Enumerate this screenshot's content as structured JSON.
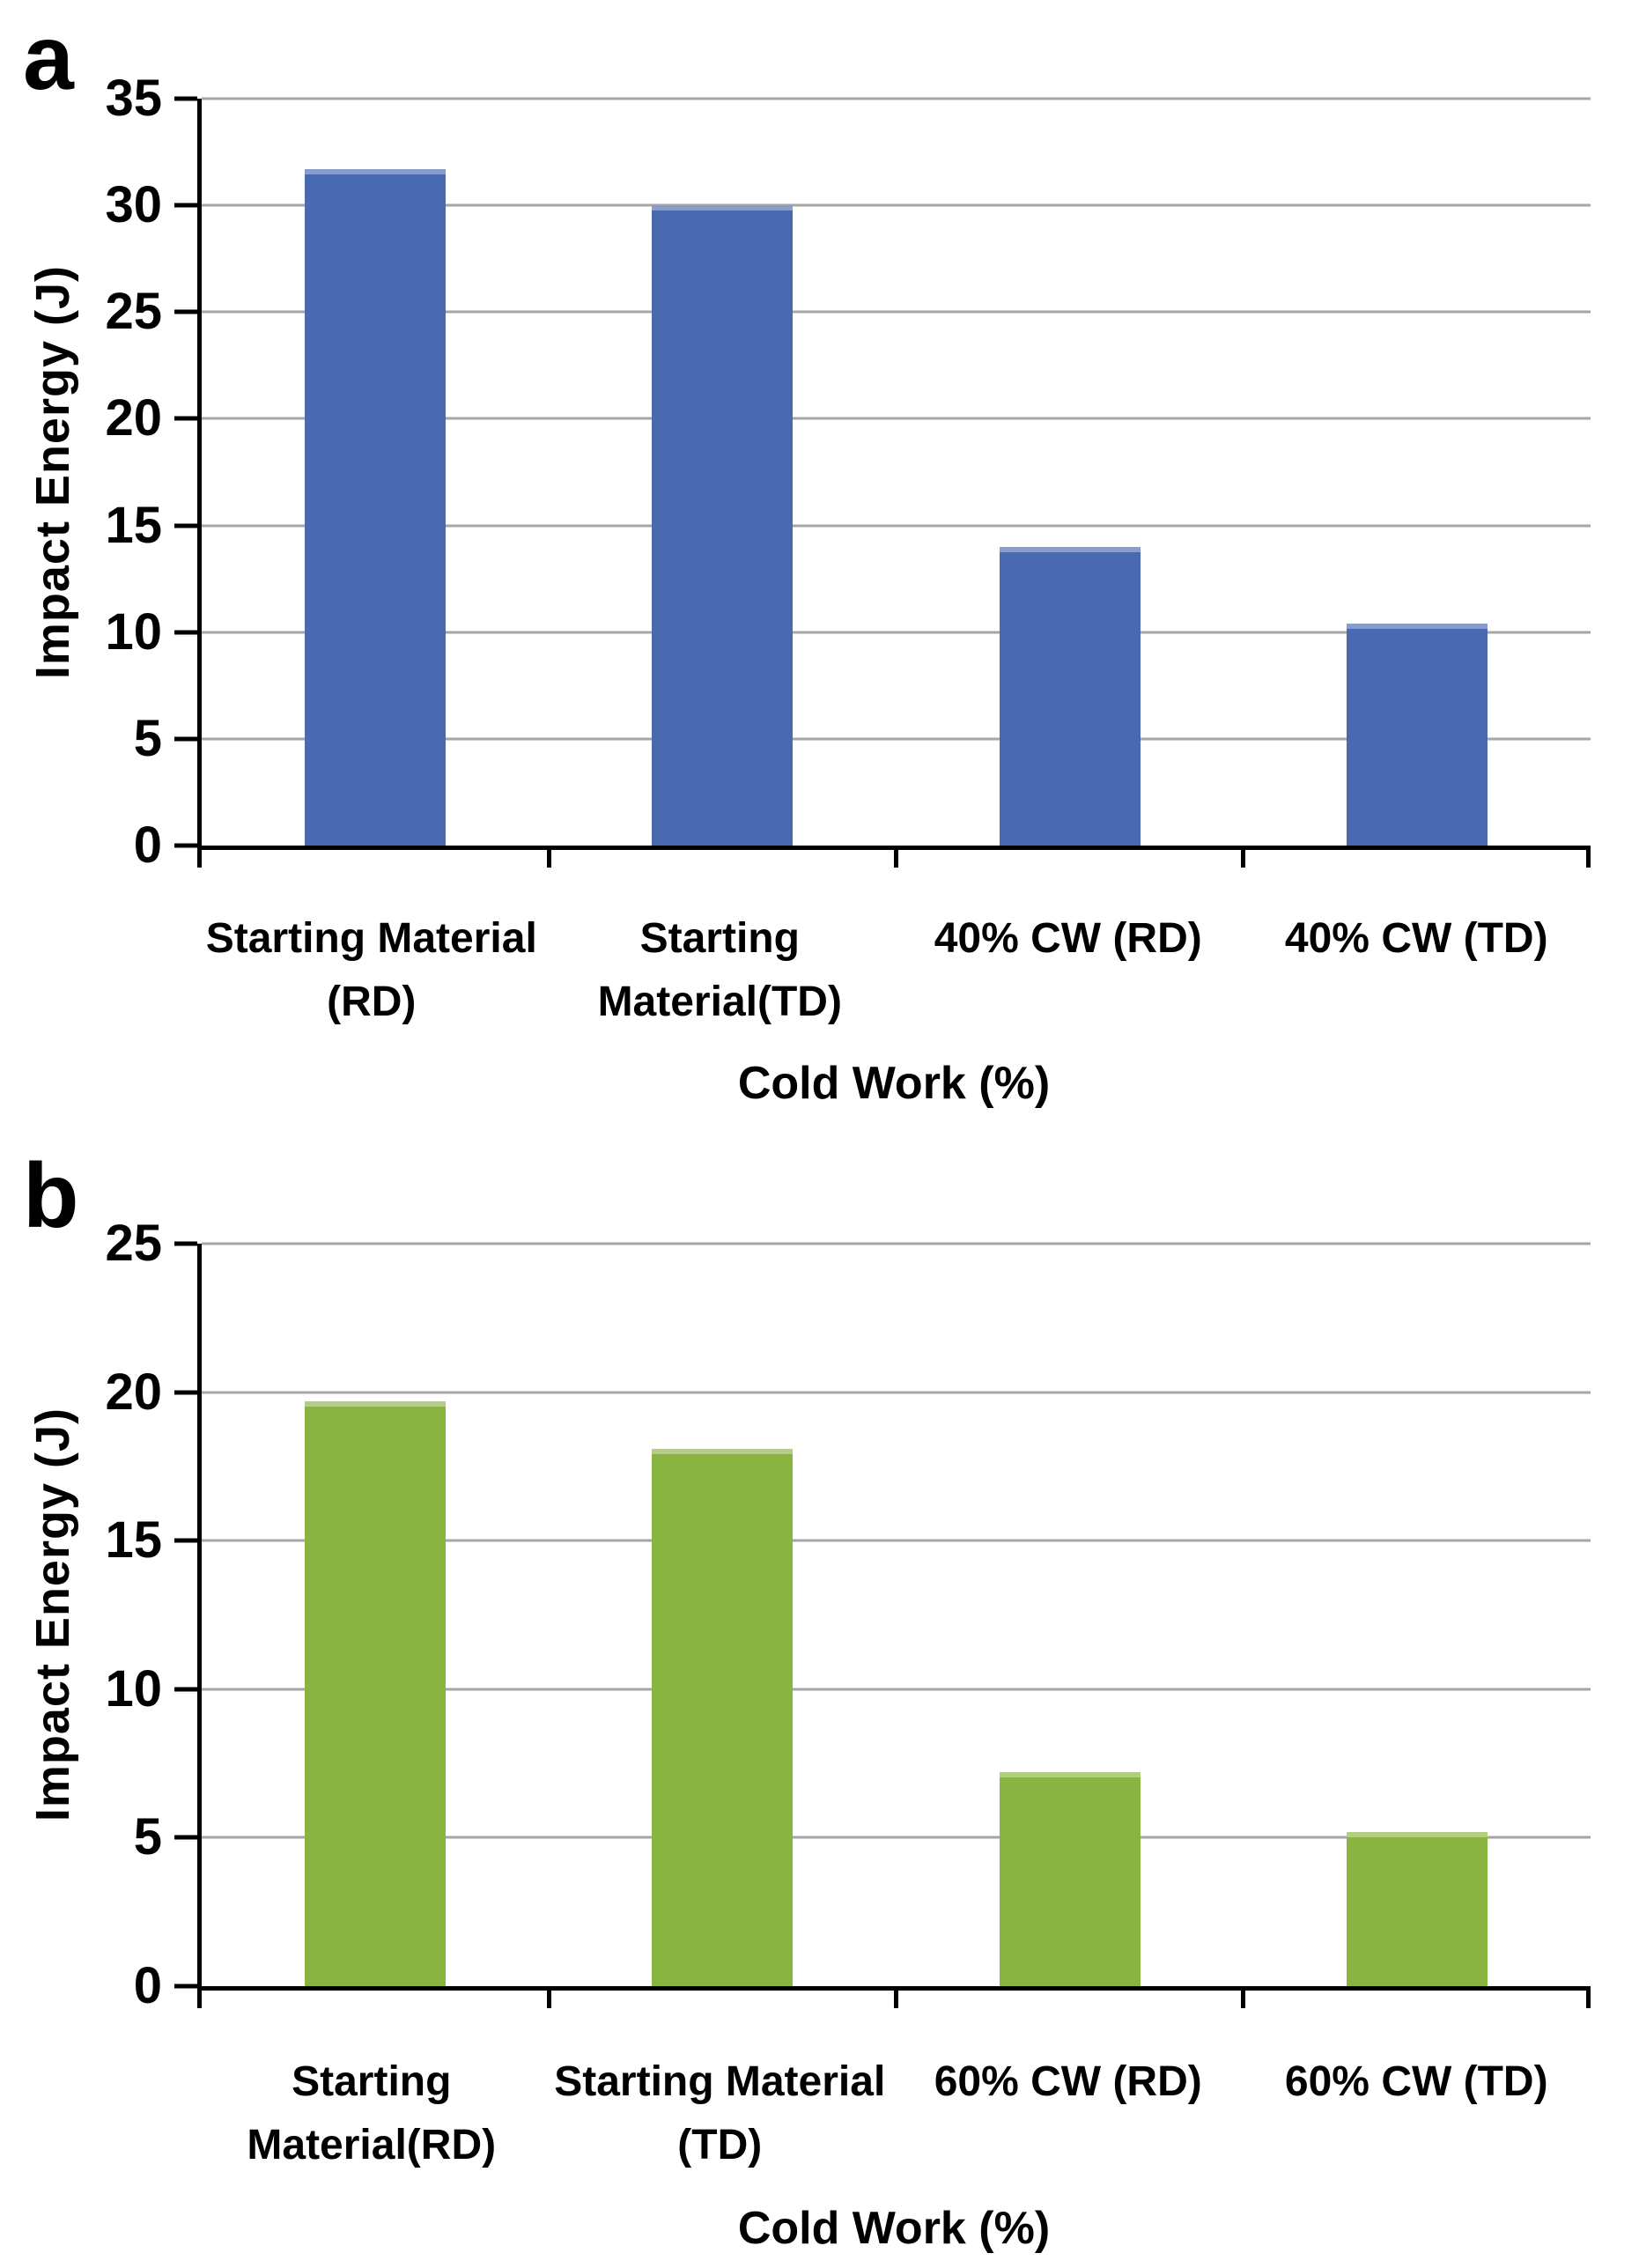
{
  "chart_data": [
    {
      "type": "bar",
      "panel_letter": "a",
      "title": "",
      "categories": [
        "Starting Material (RD)",
        "Starting Material(TD)",
        "40% CW (RD)",
        "40% CW (TD)"
      ],
      "category_label_lines": [
        [
          "Starting Material",
          "(RD)"
        ],
        [
          "Starting",
          "Material(TD)"
        ],
        [
          "40% CW (RD)"
        ],
        [
          "40% CW (TD)"
        ]
      ],
      "values": [
        31.7,
        30.0,
        14.0,
        10.4
      ],
      "xlabel": "Cold Work (%)",
      "ylabel": "Impact Energy (J)",
      "ylim": [
        0,
        35
      ],
      "ytick_step": 5,
      "grid": true,
      "legend_position": "none",
      "bar_color": "#4969b0",
      "gridline_color": "#a6a6a6",
      "axis_color": "#000000"
    },
    {
      "type": "bar",
      "panel_letter": "b",
      "title": "",
      "categories": [
        "Starting Material(RD)",
        "Starting Material (TD)",
        "60% CW (RD)",
        "60% CW (TD)"
      ],
      "category_label_lines": [
        [
          "Starting",
          "Material(RD)"
        ],
        [
          "Starting Material",
          "(TD)"
        ],
        [
          "60% CW (RD)"
        ],
        [
          "60% CW (TD)"
        ]
      ],
      "values": [
        19.7,
        18.1,
        7.2,
        5.2
      ],
      "xlabel": "Cold Work (%)",
      "ylabel": "Impact Energy (J)",
      "ylim": [
        0,
        25
      ],
      "ytick_step": 5,
      "grid": true,
      "legend_position": "none",
      "bar_color": "#8ab442",
      "gridline_color": "#a6a6a6",
      "axis_color": "#000000"
    }
  ]
}
